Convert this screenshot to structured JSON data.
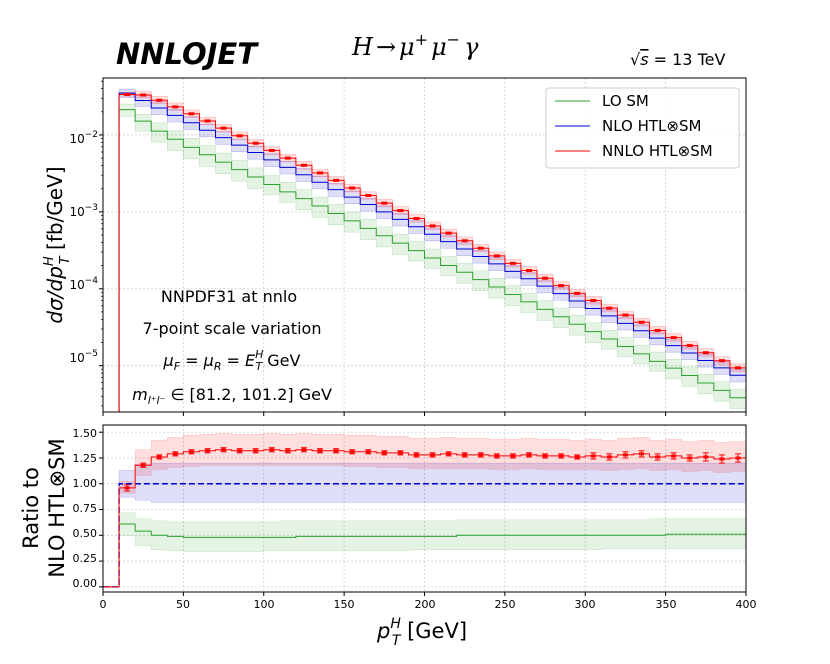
{
  "header": {
    "logo": "NNLOJET",
    "process_lhs": "H",
    "process_arrow": "→",
    "process_mu": "μ",
    "process_plus": "+",
    "process_minus": "−",
    "process_gamma": "γ",
    "energy_sqrt": "√",
    "energy_s": "s",
    "energy_value": " = 13 TeV"
  },
  "annotations": {
    "pdf": "NNPDF31 at nnlo",
    "scale_variation": "7-point scale variation",
    "scale_mu_f": "μ",
    "scale_f_sub": "F",
    "scale_eq1": " = ",
    "scale_mu_r": "μ",
    "scale_r_sub": "R",
    "scale_eq2": " = ",
    "scale_e": "E",
    "scale_e_sup": "H",
    "scale_e_sub": "T",
    "scale_unit": " GeV",
    "mass_m": "m",
    "mass_sub": "l⁺l⁻",
    "mass_range": " ∈ [81.2, 101.2] GeV"
  },
  "axes": {
    "top_ylabel_d": "d",
    "top_ylabel_sigma": "σ",
    "top_ylabel_slash": "/d",
    "top_ylabel_p": "p",
    "top_ylabel_sup": "H",
    "top_ylabel_sub": "T",
    "top_ylabel_unit": " [fb/GeV]",
    "bottom_ylabel_line1": "Ratio to",
    "bottom_ylabel_line2": "NLO HTL⊗SM",
    "xlabel_p": "p",
    "xlabel_sup": "H",
    "xlabel_sub": "T",
    "xlabel_unit": " [GeV]",
    "top_ytick_base": "10",
    "top_ytick_exponents": [
      "−5",
      "−4",
      "−3",
      "−2"
    ],
    "bottom_yticks": [
      "0.00",
      "0.25",
      "0.50",
      "0.75",
      "1.00",
      "1.25",
      "1.50"
    ],
    "xticks": [
      "0",
      "50",
      "100",
      "150",
      "200",
      "250",
      "300",
      "350",
      "400"
    ]
  },
  "legend": {
    "items": [
      {
        "label": "LO SM",
        "color": "#2ca02c"
      },
      {
        "label": "NLO HTL⊗SM",
        "color": "#0000cc"
      },
      {
        "label": "NNLO HTL⊗SM",
        "color": "#ff0000"
      }
    ]
  },
  "chart_data": [
    {
      "type": "line",
      "title": "H → μ⁺μ⁻γ",
      "xlabel": "p_T^H [GeV]",
      "ylabel": "dσ/dp_T^H [fb/GeV]",
      "xlim": [
        0,
        400
      ],
      "ylim": [
        2.5e-06,
        0.055
      ],
      "yscale": "log",
      "bin_width": 10,
      "bin_start": 10,
      "series": [
        {
          "name": "LO SM",
          "color": "#2ca02c",
          "band_frac": [
            0.25,
            0.3
          ],
          "start": 0.023,
          "end": 3.5e-06
        },
        {
          "name": "NLO HTL⊗SM",
          "color": "#0000cc",
          "band_frac": [
            0.2,
            0.2
          ],
          "start": 0.035,
          "end": 7.5e-06
        },
        {
          "name": "NNLO HTL⊗SM",
          "color": "#ff0000",
          "band_frac": [
            0.12,
            0.15
          ],
          "start": 0.035,
          "end": 9.4e-06
        }
      ]
    },
    {
      "type": "line",
      "xlabel": "p_T^H [GeV]",
      "ylabel": "Ratio to NLO HTL⊗SM",
      "xlim": [
        0,
        400
      ],
      "ylim": [
        -0.05,
        1.57
      ],
      "bin_width": 10,
      "bin_start": 10,
      "series": [
        {
          "name": "LO SM",
          "color": "#2ca02c",
          "values": [
            0.61,
            0.54,
            0.5,
            0.49,
            0.48,
            0.48,
            0.48,
            0.48,
            0.48,
            0.48,
            0.48,
            0.49,
            0.49,
            0.49,
            0.49,
            0.49,
            0.49,
            0.49,
            0.49,
            0.49,
            0.49,
            0.5,
            0.5,
            0.5,
            0.5,
            0.5,
            0.5,
            0.5,
            0.5,
            0.5,
            0.5,
            0.5,
            0.5,
            0.5,
            0.51,
            0.51,
            0.51,
            0.51,
            0.51
          ],
          "band_lo": [
            0.5,
            0.4,
            0.36,
            0.35,
            0.34,
            0.34,
            0.34,
            0.34,
            0.34,
            0.35,
            0.35,
            0.35,
            0.35,
            0.35,
            0.35,
            0.35,
            0.35,
            0.35,
            0.36,
            0.36,
            0.36,
            0.36,
            0.36,
            0.36,
            0.36,
            0.36,
            0.36,
            0.36,
            0.36,
            0.36,
            0.37,
            0.37,
            0.37,
            0.37,
            0.37,
            0.37,
            0.37,
            0.37,
            0.37
          ],
          "band_hi": [
            0.72,
            0.66,
            0.64,
            0.63,
            0.63,
            0.63,
            0.63,
            0.63,
            0.63,
            0.63,
            0.64,
            0.64,
            0.64,
            0.64,
            0.64,
            0.64,
            0.64,
            0.64,
            0.64,
            0.64,
            0.64,
            0.65,
            0.65,
            0.65,
            0.65,
            0.65,
            0.65,
            0.65,
            0.65,
            0.65,
            0.65,
            0.65,
            0.65,
            0.66,
            0.66,
            0.66,
            0.66,
            0.66,
            0.66
          ]
        },
        {
          "name": "NLO HTL⊗SM",
          "color": "#0000cc",
          "values": [
            1.0,
            1.0,
            1.0,
            1.0,
            1.0,
            1.0,
            1.0,
            1.0,
            1.0,
            1.0,
            1.0,
            1.0,
            1.0,
            1.0,
            1.0,
            1.0,
            1.0,
            1.0,
            1.0,
            1.0,
            1.0,
            1.0,
            1.0,
            1.0,
            1.0,
            1.0,
            1.0,
            1.0,
            1.0,
            1.0,
            1.0,
            1.0,
            1.0,
            1.0,
            1.0,
            1.0,
            1.0,
            1.0,
            1.0
          ],
          "band_lo": [
            0.87,
            0.84,
            0.82,
            0.82,
            0.82,
            0.82,
            0.82,
            0.82,
            0.82,
            0.82,
            0.82,
            0.82,
            0.82,
            0.82,
            0.82,
            0.82,
            0.82,
            0.82,
            0.82,
            0.82,
            0.82,
            0.82,
            0.82,
            0.82,
            0.82,
            0.82,
            0.82,
            0.82,
            0.82,
            0.82,
            0.82,
            0.82,
            0.82,
            0.82,
            0.82,
            0.82,
            0.82,
            0.82,
            0.82
          ],
          "band_hi": [
            1.13,
            1.19,
            1.2,
            1.2,
            1.2,
            1.2,
            1.2,
            1.2,
            1.2,
            1.2,
            1.2,
            1.2,
            1.2,
            1.2,
            1.2,
            1.2,
            1.2,
            1.2,
            1.2,
            1.2,
            1.2,
            1.2,
            1.2,
            1.2,
            1.2,
            1.2,
            1.2,
            1.2,
            1.2,
            1.2,
            1.2,
            1.2,
            1.2,
            1.2,
            1.2,
            1.2,
            1.2,
            1.2,
            1.2
          ]
        },
        {
          "name": "NNLO HTL⊗SM",
          "color": "#ff0000",
          "values": [
            0.96,
            1.18,
            1.26,
            1.29,
            1.31,
            1.32,
            1.33,
            1.32,
            1.32,
            1.33,
            1.32,
            1.33,
            1.32,
            1.32,
            1.31,
            1.31,
            1.3,
            1.3,
            1.28,
            1.28,
            1.29,
            1.28,
            1.28,
            1.27,
            1.27,
            1.28,
            1.27,
            1.27,
            1.26,
            1.27,
            1.26,
            1.28,
            1.29,
            1.26,
            1.27,
            1.25,
            1.26,
            1.24,
            1.25
          ],
          "errors": [
            0.03,
            0.02,
            0.02,
            0.02,
            0.02,
            0.02,
            0.02,
            0.02,
            0.02,
            0.02,
            0.02,
            0.02,
            0.02,
            0.02,
            0.02,
            0.02,
            0.02,
            0.02,
            0.02,
            0.02,
            0.02,
            0.02,
            0.02,
            0.02,
            0.02,
            0.02,
            0.02,
            0.02,
            0.02,
            0.03,
            0.03,
            0.03,
            0.03,
            0.03,
            0.03,
            0.03,
            0.04,
            0.04,
            0.04
          ],
          "band_lo": [
            0.91,
            1.08,
            1.14,
            1.16,
            1.17,
            1.18,
            1.18,
            1.18,
            1.18,
            1.18,
            1.18,
            1.18,
            1.18,
            1.18,
            1.17,
            1.17,
            1.16,
            1.16,
            1.15,
            1.15,
            1.15,
            1.15,
            1.15,
            1.14,
            1.14,
            1.15,
            1.14,
            1.14,
            1.14,
            1.14,
            1.13,
            1.14,
            1.15,
            1.13,
            1.14,
            1.12,
            1.13,
            1.11,
            1.12
          ],
          "band_hi": [
            1.02,
            1.33,
            1.42,
            1.45,
            1.47,
            1.48,
            1.49,
            1.48,
            1.48,
            1.49,
            1.48,
            1.49,
            1.48,
            1.48,
            1.47,
            1.47,
            1.46,
            1.46,
            1.44,
            1.44,
            1.45,
            1.44,
            1.44,
            1.43,
            1.43,
            1.44,
            1.43,
            1.43,
            1.42,
            1.43,
            1.42,
            1.44,
            1.45,
            1.42,
            1.43,
            1.41,
            1.42,
            1.4,
            1.41
          ]
        }
      ]
    }
  ]
}
